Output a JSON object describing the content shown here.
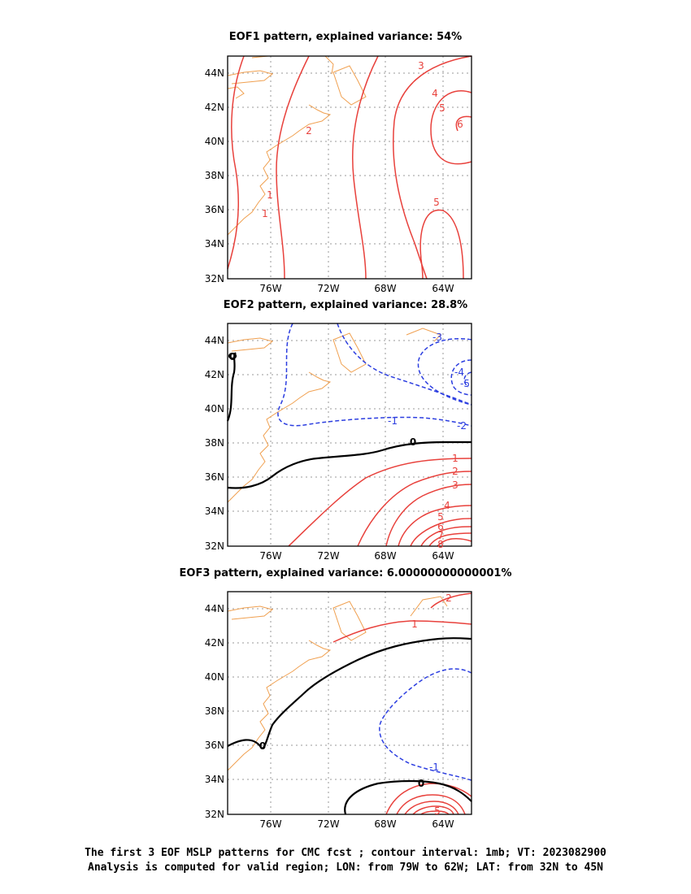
{
  "panels": [
    {
      "title": "EOF1 pattern, explained variance: 54%",
      "contour_labels": [
        "3",
        "4",
        "5",
        "6",
        "2",
        "1",
        "1",
        "5"
      ]
    },
    {
      "title": "EOF2 pattern, explained variance: 28.8%",
      "contour_labels": [
        "-3",
        "-4",
        "-5",
        "-2",
        "-1",
        "0",
        "0",
        "1",
        "2",
        "3",
        "4",
        "5",
        "6",
        "7",
        "8"
      ]
    },
    {
      "title": "EOF3 pattern, explained variance: 6.00000000000001%",
      "contour_labels": [
        "2",
        "1",
        "0",
        "-1",
        "0",
        "5"
      ]
    }
  ],
  "axes": {
    "lat_ticks": [
      "44N",
      "42N",
      "40N",
      "38N",
      "36N",
      "34N",
      "32N"
    ],
    "lon_ticks": [
      "76W",
      "72W",
      "68W",
      "64W"
    ]
  },
  "footer": {
    "line1": "The first 3 EOF MSLP patterns for CMC fcst ; contour interval: 1mb; VT: 2023082900",
    "line2": "Analysis is computed for valid region; LON: from 79W to 62W; LAT: from 32N to 45N"
  },
  "colors": {
    "positive": "#e8413c",
    "negative": "#2c3ee0",
    "zero": "#000000",
    "coast": "#f0a050",
    "grid": "#999999"
  }
}
